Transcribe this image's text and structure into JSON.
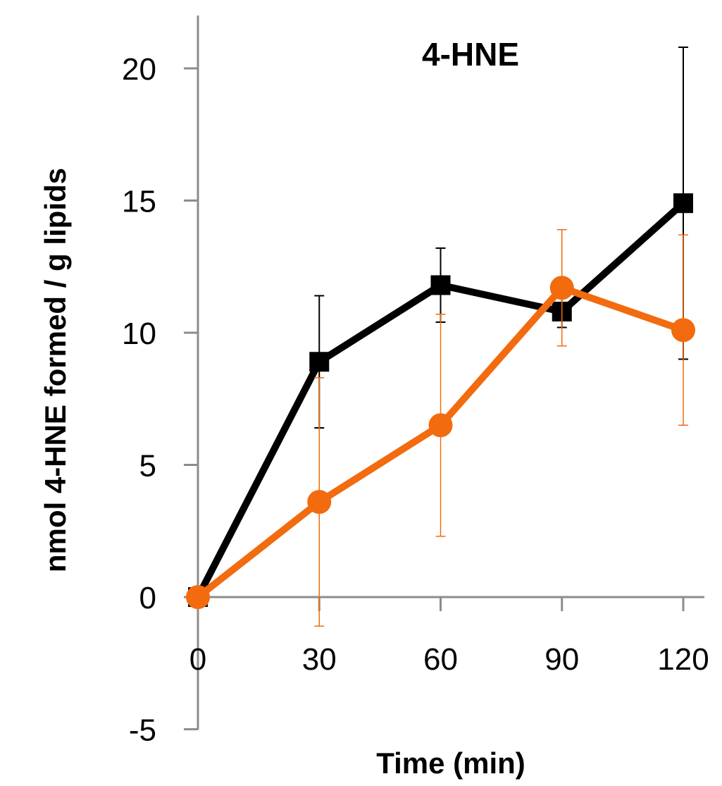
{
  "chart_data": {
    "type": "line",
    "title": "4-HNE",
    "xlabel": "Time (min)",
    "ylabel": "nmol 4-HNE formed / g lipids",
    "x": [
      0,
      30,
      60,
      90,
      120
    ],
    "xlim": [
      0,
      120
    ],
    "ylim": [
      -5,
      20
    ],
    "x_ticks": [
      "0",
      "30",
      "60",
      "90",
      "120"
    ],
    "y_ticks": [
      "-5",
      "0",
      "5",
      "10",
      "15",
      "20"
    ],
    "grid": false,
    "legend": "none",
    "series": [
      {
        "color": "#000000",
        "marker": "square",
        "values": [
          0,
          8.9,
          11.8,
          10.8,
          14.9
        ],
        "error": [
          0,
          2.5,
          1.4,
          0.6,
          5.9
        ]
      },
      {
        "color": "#F26B0F",
        "marker": "circle",
        "values": [
          0,
          3.6,
          6.5,
          11.7,
          10.1
        ],
        "error": [
          0,
          4.7,
          4.2,
          2.2,
          3.6
        ]
      }
    ]
  }
}
